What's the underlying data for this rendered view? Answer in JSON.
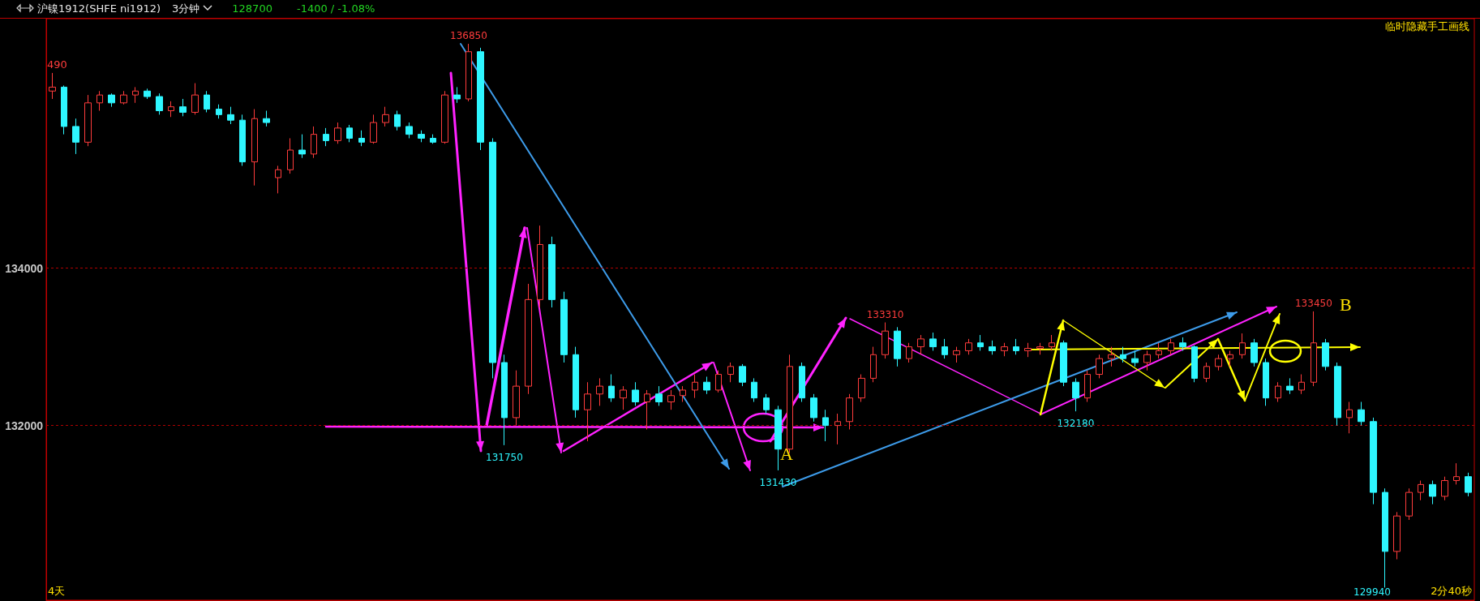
{
  "chart_data": {
    "type": "candlestick",
    "title": "沪镍1912(SHFE ni1912)",
    "subtitle": "3分钟",
    "annotations": [
      "128700",
      "-1400 / -1.08%",
      "490",
      "临时隐藏手工画线",
      "4天",
      "2分40秒",
      "A",
      "B",
      {
        "text": "136850",
        "y": 136850
      },
      {
        "text": "131750",
        "y": 131750
      },
      {
        "text": "131430",
        "y": 131430
      },
      {
        "text": "133310",
        "y": 133310
      },
      {
        "text": "132180",
        "y": 132180
      },
      {
        "text": "133450",
        "y": 133450
      },
      "129940"
    ],
    "categories": [
      null,
      null,
      null,
      null,
      null,
      null,
      null,
      null,
      null,
      null,
      null,
      null,
      null,
      null,
      null,
      null,
      null,
      null,
      null,
      null,
      null,
      null,
      null,
      null,
      null,
      null,
      null,
      null,
      null,
      null,
      null,
      null,
      null,
      null,
      null,
      null,
      null,
      null,
      null,
      null,
      null,
      null,
      null,
      null,
      null,
      null,
      null,
      null,
      null,
      null,
      null,
      null,
      null,
      null,
      null,
      null,
      null,
      null,
      null,
      null,
      null,
      null,
      null,
      null,
      null,
      null,
      null,
      null,
      null,
      null,
      null,
      null,
      null,
      null,
      null,
      null,
      null,
      null,
      null,
      null,
      null,
      null,
      null,
      null,
      null,
      null,
      null,
      null,
      null,
      null,
      null,
      null,
      null,
      null,
      null,
      null,
      null,
      null,
      null,
      null,
      null,
      null,
      null,
      null,
      null,
      null,
      null,
      null,
      null,
      null,
      null,
      null,
      null,
      null,
      null,
      null,
      null,
      null,
      null,
      null
    ],
    "ohlc": [
      [
        136250,
        136480,
        136150,
        136300
      ],
      [
        136300,
        136320,
        135700,
        135800
      ],
      [
        135800,
        135900,
        135450,
        135600
      ],
      [
        135600,
        136200,
        135550,
        136100
      ],
      [
        136100,
        136250,
        136000,
        136200
      ],
      [
        136200,
        136220,
        136050,
        136100
      ],
      [
        136100,
        136250,
        136080,
        136200
      ],
      [
        136200,
        136300,
        136100,
        136250
      ],
      [
        136250,
        136280,
        136150,
        136180
      ],
      [
        136180,
        136220,
        135950,
        136000
      ],
      [
        136000,
        136120,
        135920,
        136050
      ],
      [
        136050,
        136150,
        135930,
        135980
      ],
      [
        135980,
        136350,
        135950,
        136200
      ],
      [
        136200,
        136250,
        135980,
        136020
      ],
      [
        136020,
        136080,
        135900,
        135950
      ],
      [
        135950,
        136050,
        135830,
        135880
      ],
      [
        135880,
        135950,
        135300,
        135350
      ],
      [
        135350,
        136020,
        135050,
        135900
      ],
      [
        135900,
        136000,
        135800,
        135850
      ],
      [
        135150,
        135300,
        134950,
        135250
      ],
      [
        135250,
        135650,
        135200,
        135500
      ],
      [
        135500,
        135700,
        135400,
        135450
      ],
      [
        135450,
        135800,
        135400,
        135700
      ],
      [
        135700,
        135780,
        135550,
        135620
      ],
      [
        135620,
        135850,
        135580,
        135780
      ],
      [
        135780,
        135820,
        135600,
        135650
      ],
      [
        135650,
        135750,
        135550,
        135600
      ],
      [
        135600,
        135950,
        135580,
        135850
      ],
      [
        135850,
        136050,
        135800,
        135950
      ],
      [
        135950,
        136000,
        135750,
        135800
      ],
      [
        135800,
        135850,
        135650,
        135700
      ],
      [
        135700,
        135750,
        135600,
        135650
      ],
      [
        135650,
        135700,
        135580,
        135600
      ],
      [
        135600,
        136250,
        135580,
        136200
      ],
      [
        136200,
        136300,
        136100,
        136150
      ],
      [
        136150,
        136850,
        136120,
        136750
      ],
      [
        136750,
        136800,
        135500,
        135600
      ],
      [
        135600,
        135650,
        132600,
        132800
      ],
      [
        132800,
        132900,
        131750,
        132100
      ],
      [
        132100,
        132700,
        132000,
        132500
      ],
      [
        132500,
        133800,
        132400,
        133600
      ],
      [
        133600,
        134540,
        133500,
        134300
      ],
      [
        134300,
        134400,
        133500,
        133600
      ],
      [
        133600,
        133700,
        132800,
        132900
      ],
      [
        132900,
        133000,
        132100,
        132200
      ],
      [
        132200,
        132550,
        131800,
        132400
      ],
      [
        132400,
        132600,
        132250,
        132500
      ],
      [
        132500,
        132650,
        132300,
        132350
      ],
      [
        132350,
        132500,
        132200,
        132450
      ],
      [
        132450,
        132550,
        132250,
        132300
      ],
      [
        132300,
        132450,
        131950,
        132400
      ],
      [
        132400,
        132500,
        132250,
        132300
      ],
      [
        132300,
        132450,
        132200,
        132380
      ],
      [
        132380,
        132500,
        132300,
        132450
      ],
      [
        132450,
        132650,
        132350,
        132550
      ],
      [
        132550,
        132620,
        132400,
        132450
      ],
      [
        132450,
        132700,
        132420,
        132650
      ],
      [
        132650,
        132800,
        132550,
        132750
      ],
      [
        132750,
        132780,
        132500,
        132550
      ],
      [
        132550,
        132600,
        132300,
        132350
      ],
      [
        132350,
        132400,
        132150,
        132200
      ],
      [
        132200,
        132250,
        131430,
        131700
      ],
      [
        131700,
        132900,
        131650,
        132750
      ],
      [
        132750,
        132800,
        132300,
        132350
      ],
      [
        132350,
        132400,
        132050,
        132100
      ],
      [
        132100,
        132200,
        131800,
        132000
      ],
      [
        132000,
        132150,
        131760,
        132050
      ],
      [
        132050,
        132400,
        131950,
        132350
      ],
      [
        132350,
        132650,
        132300,
        132600
      ],
      [
        132600,
        133000,
        132550,
        132900
      ],
      [
        132900,
        133310,
        132850,
        133200
      ],
      [
        133200,
        133250,
        132750,
        132850
      ],
      [
        132850,
        133050,
        132800,
        133000
      ],
      [
        133000,
        133150,
        132900,
        133100
      ],
      [
        133100,
        133180,
        132950,
        133000
      ],
      [
        133000,
        133100,
        132850,
        132900
      ],
      [
        132900,
        133000,
        132800,
        132950
      ],
      [
        132950,
        133100,
        132900,
        133050
      ],
      [
        133050,
        133150,
        132950,
        133000
      ],
      [
        133000,
        133080,
        132900,
        132950
      ],
      [
        132950,
        133050,
        132880,
        133000
      ],
      [
        133000,
        133100,
        132900,
        132950
      ],
      [
        132950,
        133050,
        132870,
        132980
      ],
      [
        132980,
        133050,
        132900,
        133000
      ],
      [
        133000,
        133150,
        132950,
        133050
      ],
      [
        133050,
        133080,
        132500,
        132550
      ],
      [
        132550,
        132600,
        132180,
        132350
      ],
      [
        132350,
        132700,
        132300,
        132650
      ],
      [
        132650,
        132900,
        132600,
        132850
      ],
      [
        132850,
        133000,
        132750,
        132900
      ],
      [
        132900,
        133000,
        132800,
        132850
      ],
      [
        132850,
        132950,
        132750,
        132800
      ],
      [
        132800,
        132950,
        132700,
        132900
      ],
      [
        132900,
        133050,
        132850,
        132950
      ],
      [
        132950,
        133100,
        132900,
        133050
      ],
      [
        133050,
        133120,
        132950,
        133000
      ],
      [
        133000,
        133020,
        132550,
        132600
      ],
      [
        132600,
        132800,
        132550,
        132750
      ],
      [
        132750,
        132900,
        132700,
        132850
      ],
      [
        132850,
        132950,
        132750,
        132900
      ],
      [
        132900,
        133170,
        132850,
        133050
      ],
      [
        133050,
        133100,
        132750,
        132800
      ],
      [
        132800,
        132850,
        132250,
        132350
      ],
      [
        132350,
        132550,
        132300,
        132500
      ],
      [
        132500,
        132600,
        132400,
        132450
      ],
      [
        132450,
        132650,
        132400,
        132550
      ],
      [
        132550,
        133450,
        132500,
        133050
      ],
      [
        133050,
        133100,
        132700,
        132750
      ],
      [
        132750,
        132800,
        132000,
        132100
      ],
      [
        132100,
        132300,
        131900,
        132200
      ],
      [
        132200,
        132300,
        132000,
        132050
      ],
      [
        132050,
        132100,
        131000,
        131150
      ],
      [
        131150,
        131200,
        129940,
        130400
      ],
      [
        130400,
        130900,
        130300,
        130850
      ],
      [
        130850,
        131200,
        130800,
        131150
      ],
      [
        131150,
        131300,
        131050,
        131250
      ],
      [
        131250,
        131300,
        131000,
        131100
      ],
      [
        131100,
        131350,
        131050,
        131300
      ],
      [
        131300,
        131520,
        131250,
        131350
      ],
      [
        131350,
        131400,
        131100,
        131150
      ]
    ],
    "ylim": [
      129780,
      137170
    ],
    "yticks": [
      132000,
      134000
    ],
    "grid": "y",
    "tick_labels": "y"
  }
}
